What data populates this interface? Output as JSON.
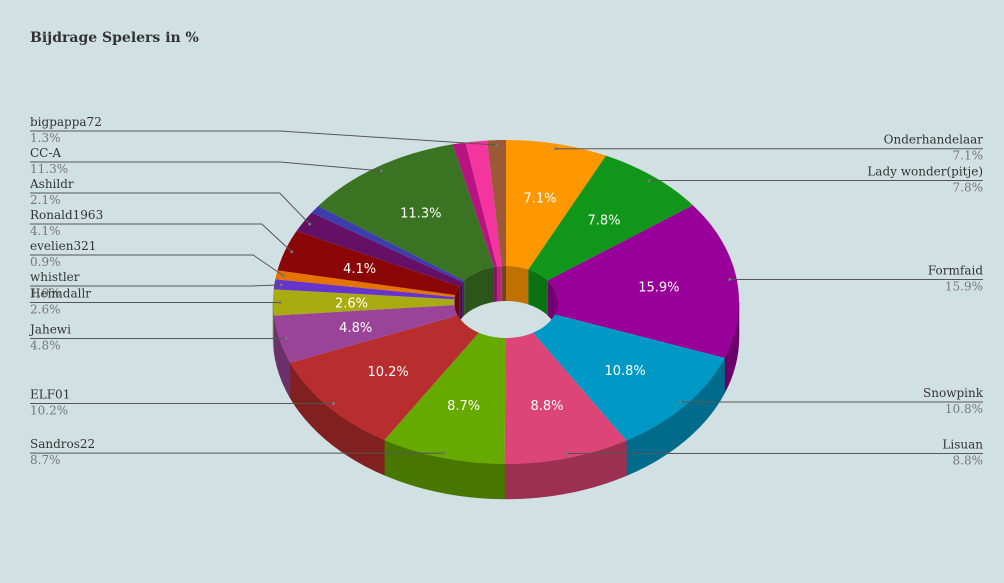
{
  "chart_data": {
    "type": "pie",
    "variant": "3d-donut",
    "title": "Bijdrage Spelers in %",
    "background": "#d1e1e3",
    "slices": [
      {
        "name": "Onderhandelaar",
        "value": 7.1,
        "label": "7.1%",
        "color": "#ff9800",
        "side": "right"
      },
      {
        "name": "Lady wonder(pitje)",
        "value": 7.8,
        "label": "7.8%",
        "color": "#109618",
        "side": "right"
      },
      {
        "name": "Formfaid",
        "value": 15.9,
        "label": "15.9%",
        "color": "#990099",
        "side": "right"
      },
      {
        "name": "Snowpink",
        "value": 10.8,
        "label": "10.8%",
        "color": "#0099c6",
        "side": "right"
      },
      {
        "name": "Lisuan",
        "value": 8.8,
        "label": "8.8%",
        "color": "#dd4477",
        "side": "right"
      },
      {
        "name": "Sandros22",
        "value": 8.7,
        "label": "8.7%",
        "color": "#66aa00",
        "side": "left"
      },
      {
        "name": "ELF01",
        "value": 10.2,
        "label": "10.2%",
        "color": "#b82e2e",
        "side": "left"
      },
      {
        "name": "Jahewi",
        "value": 4.8,
        "label": "4.8%",
        "color": "#994499",
        "side": "left"
      },
      {
        "name": "Heimdallr",
        "value": 2.6,
        "label": "2.6%",
        "color": "#aaaa11",
        "side": "left"
      },
      {
        "name": "whistler",
        "value": 1.0,
        "label": "1.0%",
        "color": "#6633cc",
        "side": "left"
      },
      {
        "name": "evelien321",
        "value": 0.9,
        "label": "0.9%",
        "color": "#e67300",
        "side": "left"
      },
      {
        "name": "Ronald1963",
        "value": 4.1,
        "label": "4.1%",
        "color": "#8b0707",
        "side": "left"
      },
      {
        "name": "Ashildr",
        "value": 2.1,
        "label": "2.1%",
        "color": "#651067",
        "side": "left"
      },
      {
        "name": "",
        "value": 0.8,
        "label": "",
        "color": "#3b3eac",
        "side": "none"
      },
      {
        "name": "CC-A",
        "value": 11.3,
        "label": "11.3%",
        "color": "#3a7321",
        "side": "left"
      },
      {
        "name": "",
        "value": 0.9,
        "label": "",
        "color": "#b91383",
        "side": "none"
      },
      {
        "name": "",
        "value": 1.5,
        "label": "",
        "color": "#f4359e",
        "side": "none"
      },
      {
        "name": "bigpappa72",
        "value": 1.3,
        "label": "1.3%",
        "color": "#9c5935",
        "side": "left"
      }
    ]
  }
}
